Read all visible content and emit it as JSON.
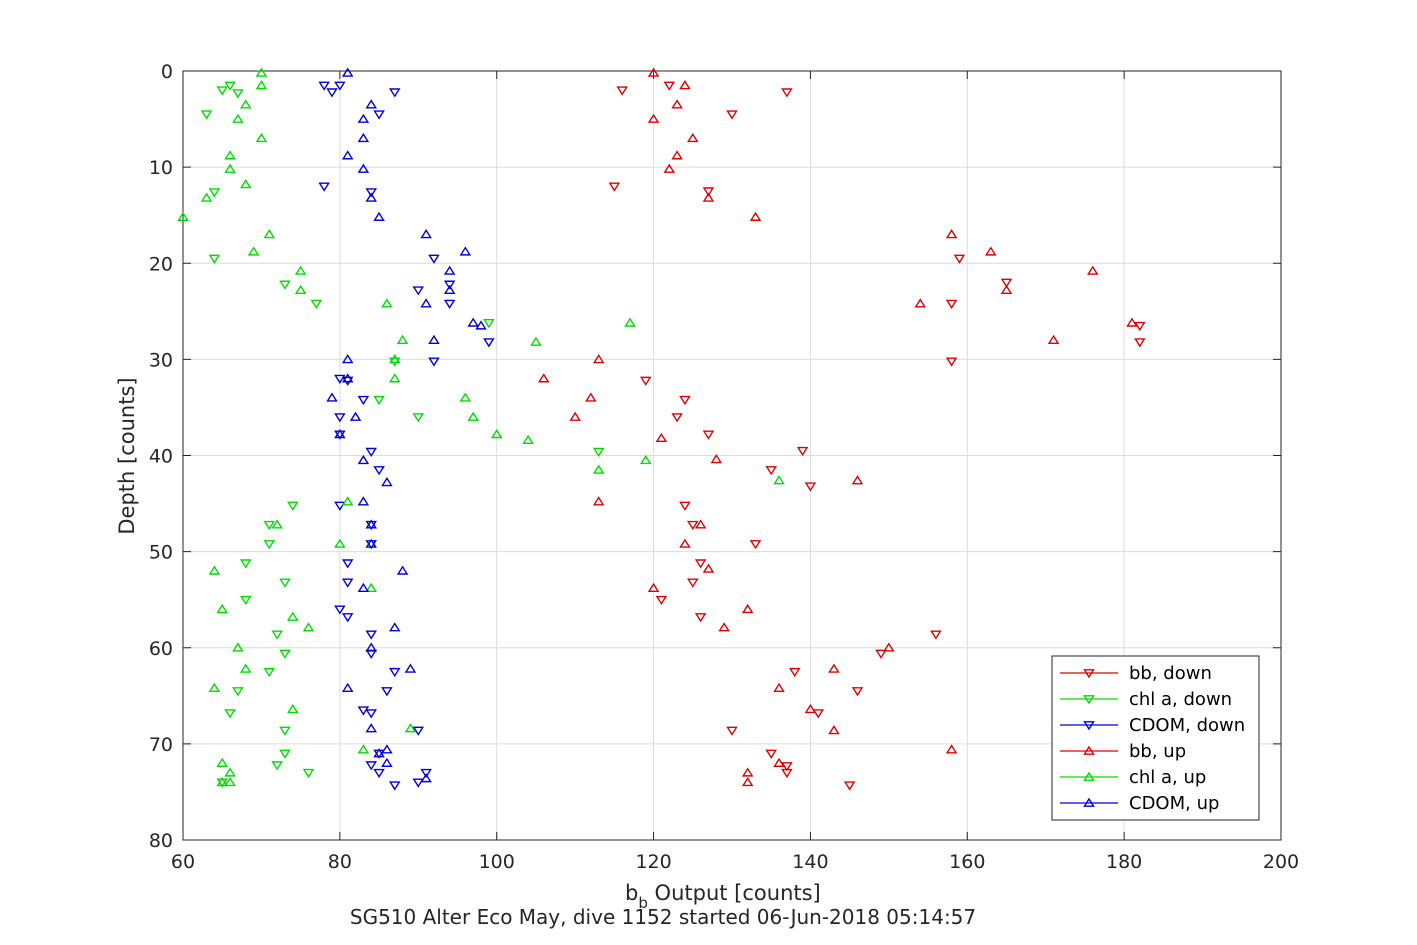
{
  "chart_data": {
    "type": "scatter",
    "title": "",
    "xlabel_main": "b",
    "xlabel_sub": "b",
    "xlabel_rest": " Output [counts]",
    "ylabel": "Depth [counts]",
    "caption": "SG510 Alter Eco May, dive 1152 started 06-Jun-2018 05:14:57",
    "xlim": [
      60,
      200
    ],
    "ylim": [
      0,
      80
    ],
    "y_reversed": true,
    "xticks": [
      60,
      80,
      100,
      120,
      140,
      160,
      180,
      200
    ],
    "yticks": [
      0,
      10,
      20,
      30,
      40,
      50,
      60,
      70,
      80
    ],
    "grid": true,
    "legend_position": "bottom-right",
    "series": [
      {
        "name": "bb, down",
        "color": "#e00000",
        "marker": "triangle-down",
        "points": [
          [
            116,
            2
          ],
          [
            122,
            1.5
          ],
          [
            137,
            2.2
          ],
          [
            130,
            4.5
          ],
          [
            115,
            12
          ],
          [
            127,
            12.5
          ],
          [
            158,
            24.2
          ],
          [
            159,
            19.5
          ],
          [
            165,
            22
          ],
          [
            182,
            26.5
          ],
          [
            182,
            28.2
          ],
          [
            158,
            30.2
          ],
          [
            119,
            32.2
          ],
          [
            124,
            34.2
          ],
          [
            123,
            36
          ],
          [
            127,
            37.8
          ],
          [
            139,
            39.5
          ],
          [
            135,
            41.5
          ],
          [
            140,
            43.2
          ],
          [
            124,
            45.2
          ],
          [
            125,
            47.2
          ],
          [
            133,
            49.2
          ],
          [
            126,
            51.2
          ],
          [
            125,
            53.2
          ],
          [
            121,
            55
          ],
          [
            126,
            56.8
          ],
          [
            156,
            58.6
          ],
          [
            149,
            60.6
          ],
          [
            138,
            62.5
          ],
          [
            146,
            64.5
          ],
          [
            141,
            66.8
          ],
          [
            130,
            68.6
          ],
          [
            135,
            71
          ],
          [
            137,
            72.3
          ],
          [
            137,
            73
          ],
          [
            145,
            74.3
          ]
        ]
      },
      {
        "name": "chl a, down",
        "color": "#00dd00",
        "marker": "triangle-down",
        "points": [
          [
            66,
            1.5
          ],
          [
            65,
            2
          ],
          [
            67,
            2.3
          ],
          [
            63,
            4.5
          ],
          [
            64,
            12.6
          ],
          [
            64,
            19.5
          ],
          [
            73,
            22.2
          ],
          [
            77,
            24.2
          ],
          [
            99,
            26.2
          ],
          [
            87,
            30.2
          ],
          [
            85,
            34.2
          ],
          [
            90,
            36
          ],
          [
            113,
            39.6
          ],
          [
            74,
            45.2
          ],
          [
            71,
            47.2
          ],
          [
            71,
            49.2
          ],
          [
            68,
            51.2
          ],
          [
            73,
            53.2
          ],
          [
            68,
            55
          ],
          [
            72,
            58.6
          ],
          [
            73,
            60.6
          ],
          [
            71,
            62.5
          ],
          [
            67,
            64.5
          ],
          [
            66,
            66.8
          ],
          [
            73,
            68.6
          ],
          [
            73,
            71
          ],
          [
            72,
            72.2
          ],
          [
            76,
            73
          ],
          [
            65,
            74
          ]
        ]
      },
      {
        "name": "CDOM, down",
        "color": "#0000dd",
        "marker": "triangle-down",
        "points": [
          [
            78,
            1.5
          ],
          [
            80,
            1.5
          ],
          [
            79,
            2.2
          ],
          [
            87,
            2.2
          ],
          [
            85,
            4.5
          ],
          [
            78,
            12
          ],
          [
            84,
            12.6
          ],
          [
            92,
            19.5
          ],
          [
            90,
            22.8
          ],
          [
            94,
            22.2
          ],
          [
            94,
            24.2
          ],
          [
            99,
            28.2
          ],
          [
            92,
            30.2
          ],
          [
            80,
            32
          ],
          [
            81,
            32.2
          ],
          [
            83,
            34.2
          ],
          [
            80,
            36
          ],
          [
            80,
            37.8
          ],
          [
            84,
            39.6
          ],
          [
            85,
            41.5
          ],
          [
            80,
            45.2
          ],
          [
            84,
            47.2
          ],
          [
            84,
            49.2
          ],
          [
            81,
            51.2
          ],
          [
            81,
            53.2
          ],
          [
            80,
            56
          ],
          [
            81,
            56.8
          ],
          [
            84,
            58.6
          ],
          [
            84,
            60.6
          ],
          [
            87,
            62.5
          ],
          [
            86,
            64.5
          ],
          [
            83,
            66.5
          ],
          [
            84,
            66.8
          ],
          [
            90,
            68.6
          ],
          [
            85,
            71
          ],
          [
            84,
            72.2
          ],
          [
            91,
            73
          ],
          [
            85,
            73
          ],
          [
            87,
            74.3
          ],
          [
            90,
            74
          ]
        ]
      },
      {
        "name": "bb, up",
        "color": "#e00000",
        "marker": "triangle-up",
        "points": [
          [
            120,
            0.2
          ],
          [
            124,
            1.5
          ],
          [
            123,
            3.5
          ],
          [
            120,
            5
          ],
          [
            125,
            7
          ],
          [
            123,
            8.8
          ],
          [
            122,
            10.2
          ],
          [
            127,
            13.2
          ],
          [
            133,
            15.2
          ],
          [
            158,
            17
          ],
          [
            163,
            18.8
          ],
          [
            176,
            20.8
          ],
          [
            165,
            22.8
          ],
          [
            154,
            24.2
          ],
          [
            181,
            26.2
          ],
          [
            171,
            28
          ],
          [
            113,
            30
          ],
          [
            106,
            32
          ],
          [
            112,
            34
          ],
          [
            110,
            36
          ],
          [
            121,
            38.2
          ],
          [
            128,
            40.4
          ],
          [
            146,
            42.6
          ],
          [
            113,
            44.8
          ],
          [
            126,
            47.2
          ],
          [
            124,
            49.2
          ],
          [
            127,
            51.8
          ],
          [
            120,
            53.8
          ],
          [
            132,
            56
          ],
          [
            129,
            57.9
          ],
          [
            150,
            60
          ],
          [
            143,
            62.2
          ],
          [
            136,
            64.2
          ],
          [
            140,
            66.4
          ],
          [
            143,
            68.6
          ],
          [
            158,
            70.6
          ],
          [
            136,
            72
          ],
          [
            132,
            73
          ],
          [
            132,
            74
          ]
        ]
      },
      {
        "name": "chl a, up",
        "color": "#00dd00",
        "marker": "triangle-up",
        "points": [
          [
            70,
            0.2
          ],
          [
            70,
            1.5
          ],
          [
            68,
            3.5
          ],
          [
            67,
            5
          ],
          [
            70,
            7
          ],
          [
            66,
            8.8
          ],
          [
            66,
            10.2
          ],
          [
            68,
            11.8
          ],
          [
            63,
            13.2
          ],
          [
            60,
            15.2
          ],
          [
            71,
            17
          ],
          [
            69,
            18.8
          ],
          [
            75,
            20.8
          ],
          [
            75,
            22.8
          ],
          [
            86,
            24.2
          ],
          [
            117,
            26.2
          ],
          [
            88,
            28
          ],
          [
            105,
            28.2
          ],
          [
            87,
            30
          ],
          [
            87,
            32
          ],
          [
            96,
            34
          ],
          [
            97,
            36
          ],
          [
            100,
            37.8
          ],
          [
            104,
            38.4
          ],
          [
            119,
            40.5
          ],
          [
            113,
            41.5
          ],
          [
            136,
            42.6
          ],
          [
            81,
            44.8
          ],
          [
            72,
            47.2
          ],
          [
            80,
            49.2
          ],
          [
            64,
            52
          ],
          [
            84,
            53.8
          ],
          [
            65,
            56
          ],
          [
            74,
            56.8
          ],
          [
            76,
            57.9
          ],
          [
            67,
            60
          ],
          [
            68,
            62.2
          ],
          [
            64,
            64.2
          ],
          [
            74,
            66.4
          ],
          [
            89,
            68.4
          ],
          [
            83,
            70.6
          ],
          [
            65,
            72
          ],
          [
            66,
            73
          ],
          [
            65,
            74
          ],
          [
            66,
            74
          ]
        ]
      },
      {
        "name": "CDOM, up",
        "color": "#0000dd",
        "marker": "triangle-up",
        "points": [
          [
            81,
            0.2
          ],
          [
            84,
            3.5
          ],
          [
            83,
            5
          ],
          [
            83,
            7
          ],
          [
            81,
            8.8
          ],
          [
            83,
            10.2
          ],
          [
            84,
            13.2
          ],
          [
            85,
            15.2
          ],
          [
            91,
            17
          ],
          [
            96,
            18.8
          ],
          [
            94,
            20.8
          ],
          [
            94,
            22.8
          ],
          [
            91,
            24.2
          ],
          [
            97,
            26.2
          ],
          [
            98,
            26.5
          ],
          [
            92,
            28
          ],
          [
            81,
            30
          ],
          [
            81,
            32
          ],
          [
            79,
            34
          ],
          [
            82,
            36
          ],
          [
            80,
            37.8
          ],
          [
            83,
            40.5
          ],
          [
            86,
            42.8
          ],
          [
            83,
            44.8
          ],
          [
            84,
            47.2
          ],
          [
            84,
            49.2
          ],
          [
            88,
            52
          ],
          [
            83,
            53.8
          ],
          [
            87,
            57.9
          ],
          [
            84,
            60
          ],
          [
            89,
            62.2
          ],
          [
            81,
            64.2
          ],
          [
            84,
            68.4
          ],
          [
            85,
            71
          ],
          [
            86,
            70.6
          ],
          [
            86,
            72
          ],
          [
            91,
            73.6
          ]
        ]
      }
    ]
  }
}
